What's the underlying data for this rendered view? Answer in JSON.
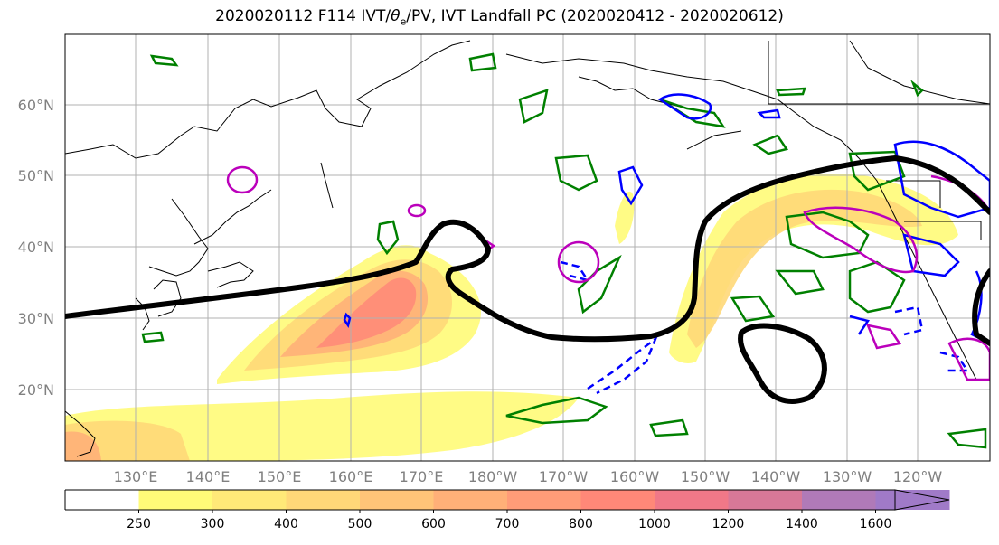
{
  "title": "2020020112 F114 IVT/θe/PV, IVT Landfall PC (2020020412 - 2020020612)",
  "title_parts": {
    "pre": "2020020112 F114 IVT/",
    "theta": "θ",
    "sub": "e",
    "post": "/PV, IVT Landfall PC (2020020412 - 2020020612)"
  },
  "lat_labels": [
    "60°N",
    "50°N",
    "40°N",
    "30°N",
    "20°N"
  ],
  "lon_labels": [
    "130°E",
    "140°E",
    "150°E",
    "160°E",
    "170°E",
    "180°W",
    "170°W",
    "160°W",
    "150°W",
    "140°W",
    "130°W",
    "120°W"
  ],
  "colorbar": {
    "ticks": [
      "250",
      "300",
      "400",
      "500",
      "600",
      "700",
      "800",
      "1000",
      "1200",
      "1400",
      "1600"
    ],
    "colors": [
      "#ffffff",
      "#fffb78",
      "#ffe978",
      "#ffd878",
      "#ffc478",
      "#ffb078",
      "#ff9c78",
      "#ff8878",
      "#f07888",
      "#d87898",
      "#b07ab8",
      "#a07ac8"
    ]
  },
  "colors": {
    "coastline": "#000000",
    "pv_contour": "#000000",
    "green": "#008000",
    "blue": "#0000ff",
    "magenta": "#bb00bb",
    "grid": "#b0b0b0",
    "label": "#808080"
  }
}
